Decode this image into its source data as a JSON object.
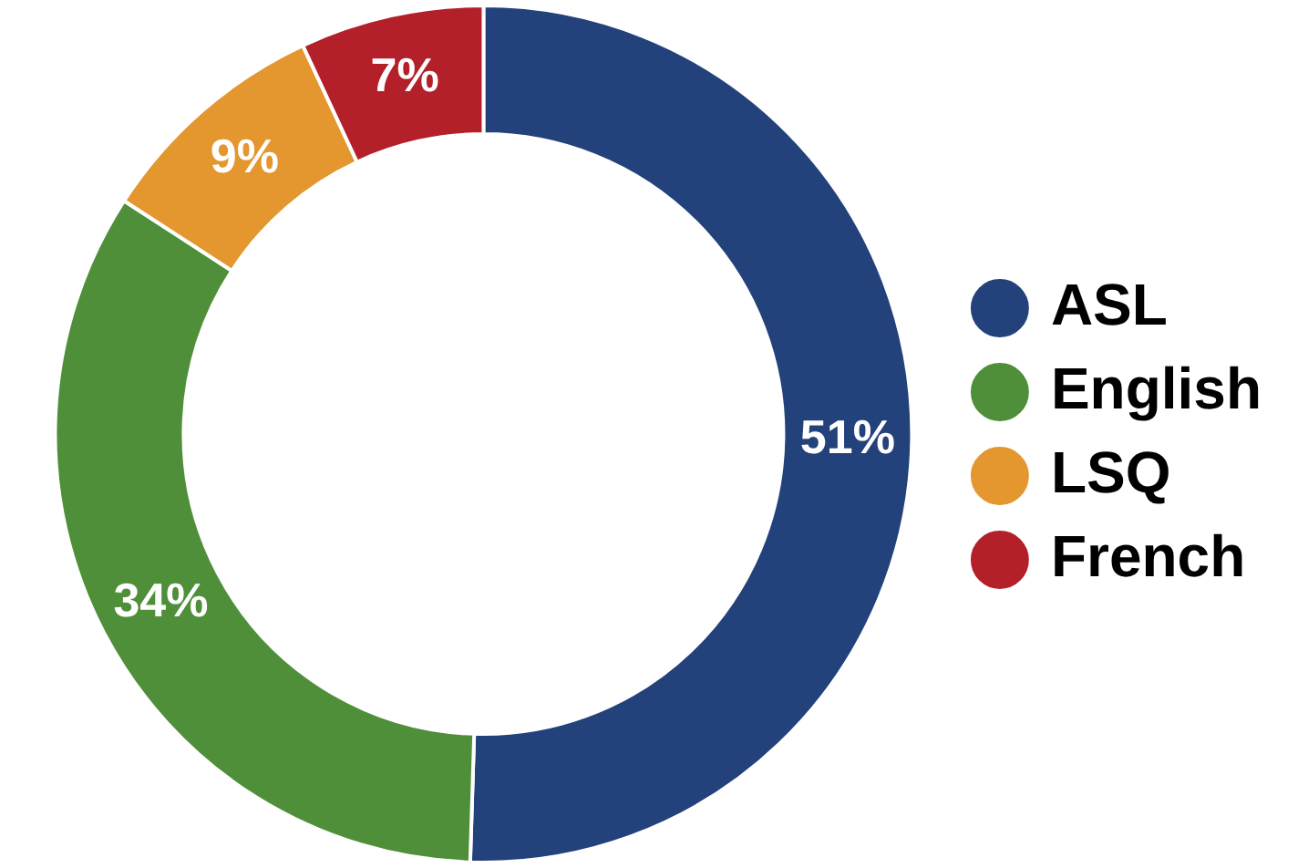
{
  "chart_data": {
    "type": "donut",
    "categories": [
      "ASL",
      "English",
      "LSQ",
      "French"
    ],
    "values": [
      51,
      34,
      9,
      7
    ],
    "colors": [
      "#23417a",
      "#4f8f3a",
      "#e4962f",
      "#b3202a"
    ],
    "value_labels": [
      "51%",
      "34%",
      "9%",
      "7%"
    ],
    "legend": "right"
  }
}
